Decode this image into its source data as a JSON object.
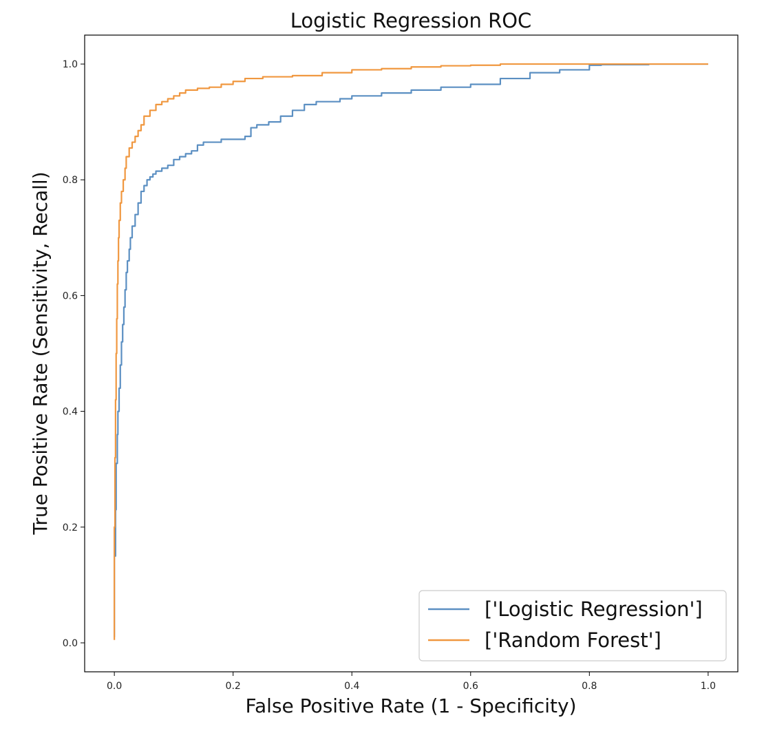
{
  "chart_data": {
    "type": "line",
    "title": "Logistic Regression ROC",
    "xlabel": "False Positive Rate (1 - Specificity)",
    "ylabel": "True Positive Rate (Sensitivity, Recall)",
    "xlim": [
      -0.05,
      1.05
    ],
    "ylim": [
      -0.05,
      1.05
    ],
    "xticks": [
      0.0,
      0.2,
      0.4,
      0.6,
      0.8,
      1.0
    ],
    "xtick_labels": [
      "0.0",
      "0.2",
      "0.4",
      "0.6",
      "0.8",
      "1.0"
    ],
    "yticks": [
      0.0,
      0.2,
      0.4,
      0.6,
      0.8,
      1.0
    ],
    "ytick_labels": [
      "0.0",
      "0.2",
      "0.4",
      "0.6",
      "0.8",
      "1.0"
    ],
    "grid": false,
    "legend_position": "lower-right",
    "series": [
      {
        "name": "['Logistic Regression']",
        "color": "#5b8fc2",
        "x": [
          0.0,
          0.002,
          0.003,
          0.005,
          0.006,
          0.008,
          0.01,
          0.012,
          0.014,
          0.016,
          0.018,
          0.02,
          0.022,
          0.025,
          0.027,
          0.03,
          0.035,
          0.04,
          0.045,
          0.05,
          0.055,
          0.06,
          0.065,
          0.07,
          0.075,
          0.08,
          0.09,
          0.1,
          0.11,
          0.12,
          0.13,
          0.14,
          0.15,
          0.16,
          0.18,
          0.2,
          0.22,
          0.23,
          0.24,
          0.26,
          0.28,
          0.3,
          0.32,
          0.34,
          0.36,
          0.38,
          0.4,
          0.45,
          0.5,
          0.55,
          0.6,
          0.65,
          0.7,
          0.75,
          0.8,
          0.82,
          0.9,
          0.95,
          1.0
        ],
        "y": [
          0.01,
          0.15,
          0.23,
          0.31,
          0.36,
          0.4,
          0.44,
          0.48,
          0.52,
          0.55,
          0.58,
          0.61,
          0.64,
          0.66,
          0.68,
          0.7,
          0.72,
          0.74,
          0.76,
          0.78,
          0.79,
          0.8,
          0.805,
          0.81,
          0.815,
          0.815,
          0.82,
          0.825,
          0.835,
          0.84,
          0.845,
          0.85,
          0.86,
          0.865,
          0.865,
          0.87,
          0.87,
          0.875,
          0.89,
          0.895,
          0.9,
          0.91,
          0.92,
          0.93,
          0.935,
          0.935,
          0.94,
          0.945,
          0.95,
          0.955,
          0.96,
          0.965,
          0.975,
          0.985,
          0.99,
          0.998,
          0.999,
          1.0,
          1.0
        ]
      },
      {
        "name": "['Random Forest']",
        "color": "#f0973f",
        "x": [
          0.0,
          0.001,
          0.002,
          0.003,
          0.004,
          0.005,
          0.006,
          0.007,
          0.008,
          0.01,
          0.012,
          0.015,
          0.018,
          0.02,
          0.025,
          0.03,
          0.035,
          0.04,
          0.045,
          0.05,
          0.06,
          0.07,
          0.08,
          0.09,
          0.1,
          0.11,
          0.12,
          0.14,
          0.16,
          0.18,
          0.2,
          0.22,
          0.25,
          0.3,
          0.35,
          0.4,
          0.45,
          0.5,
          0.55,
          0.6,
          0.65,
          0.7,
          0.8,
          0.9,
          1.0
        ],
        "y": [
          0.005,
          0.2,
          0.32,
          0.42,
          0.5,
          0.56,
          0.62,
          0.66,
          0.7,
          0.73,
          0.76,
          0.78,
          0.8,
          0.82,
          0.84,
          0.855,
          0.865,
          0.875,
          0.885,
          0.895,
          0.91,
          0.92,
          0.93,
          0.935,
          0.94,
          0.945,
          0.95,
          0.955,
          0.958,
          0.96,
          0.965,
          0.97,
          0.975,
          0.978,
          0.98,
          0.985,
          0.99,
          0.992,
          0.995,
          0.997,
          0.998,
          1.0,
          1.0,
          1.0,
          1.0
        ]
      }
    ]
  }
}
